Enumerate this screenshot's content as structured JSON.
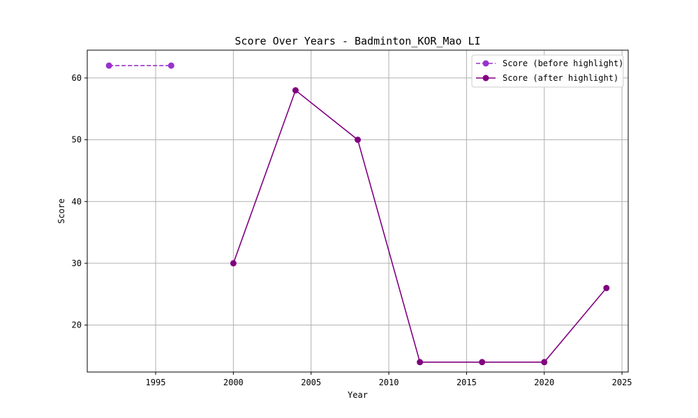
{
  "chart_data": {
    "type": "line",
    "title": "Score Over Years - Badminton_KOR_Mao LI",
    "xlabel": "Year",
    "ylabel": "Score",
    "xlim": [
      1990.6,
      2025.4
    ],
    "ylim": [
      12.4,
      64.5
    ],
    "xticks": [
      1995,
      2000,
      2005,
      2010,
      2015,
      2020,
      2025
    ],
    "yticks": [
      20,
      30,
      40,
      50,
      60
    ],
    "grid": true,
    "legend_position": "top-right",
    "series": [
      {
        "name": "Score (before highlight)",
        "color": "#9932CC",
        "line_style": "dashed",
        "marker": "circle",
        "x": [
          1992,
          1996
        ],
        "y": [
          62,
          62
        ]
      },
      {
        "name": "Score (after highlight)",
        "color": "#800080",
        "line_style": "solid",
        "marker": "circle",
        "x": [
          2000,
          2004,
          2008,
          2012,
          2016,
          2020,
          2024
        ],
        "y": [
          30,
          58,
          50,
          14,
          14,
          14,
          26
        ]
      }
    ]
  }
}
